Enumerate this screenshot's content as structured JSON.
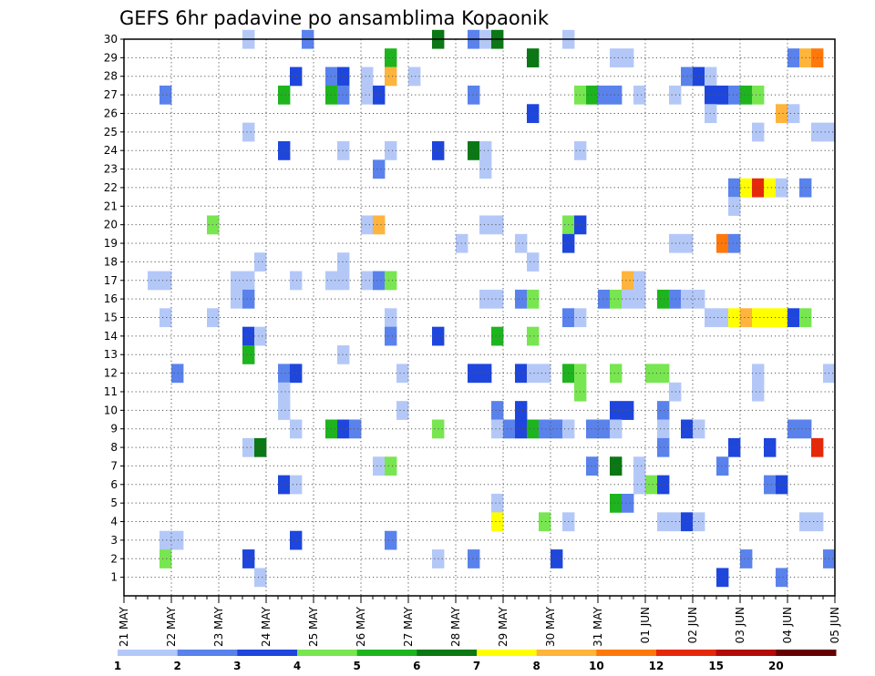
{
  "chart_data": {
    "type": "heatmap",
    "title": "GEFS 6hr padavine po ansamblima Kopaonik",
    "x_tick_labels": [
      "21 MAY",
      "22 MAY",
      "23 MAY",
      "24 MAY",
      "25 MAY",
      "26 MAY",
      "27 MAY",
      "28 MAY",
      "29 MAY",
      "30 MAY",
      "31 MAY",
      "01 JUN",
      "02 JUN",
      "03 JUN",
      "04 JUN",
      "05 JUN"
    ],
    "y_tick_labels": [
      "1",
      "2",
      "3",
      "4",
      "5",
      "6",
      "7",
      "8",
      "9",
      "10",
      "11",
      "12",
      "13",
      "14",
      "15",
      "16",
      "17",
      "18",
      "19",
      "20",
      "21",
      "22",
      "23",
      "24",
      "25",
      "26",
      "27",
      "28",
      "29",
      "30"
    ],
    "steps_per_day": 4,
    "xlim_steps": [
      0,
      60
    ],
    "ylim": [
      0,
      30
    ],
    "grid": true,
    "legend": {
      "placement": "bottom",
      "labels": [
        "1",
        "2",
        "3",
        "4",
        "5",
        "6",
        "7",
        "8",
        "10",
        "12",
        "15",
        "20"
      ],
      "colors": [
        "#b4c8f8",
        "#5a82ec",
        "#1e46dc",
        "#78e650",
        "#1eb41e",
        "#0a7814",
        "#ffff00",
        "#ffb43c",
        "#ff780a",
        "#e6280a",
        "#b40a0a",
        "#640000"
      ]
    },
    "cells": [
      [
        11,
        30,
        1
      ],
      [
        16,
        30,
        2
      ],
      [
        27,
        30,
        6
      ],
      [
        30,
        30,
        2
      ],
      [
        31,
        30,
        1
      ],
      [
        32,
        30,
        6
      ],
      [
        38,
        30,
        1
      ],
      [
        23,
        29,
        5
      ],
      [
        35,
        29,
        6
      ],
      [
        42,
        29,
        1
      ],
      [
        43,
        29,
        1
      ],
      [
        57,
        29,
        2
      ],
      [
        58,
        29,
        9
      ],
      [
        59,
        29,
        10
      ],
      [
        15,
        28,
        3
      ],
      [
        18,
        28,
        2
      ],
      [
        19,
        28,
        3
      ],
      [
        21,
        28,
        1
      ],
      [
        23,
        28,
        9
      ],
      [
        25,
        28,
        1
      ],
      [
        48,
        28,
        2
      ],
      [
        49,
        28,
        3
      ],
      [
        50,
        28,
        1
      ],
      [
        4,
        27,
        2
      ],
      [
        14,
        27,
        5
      ],
      [
        18,
        27,
        5
      ],
      [
        19,
        27,
        2
      ],
      [
        21,
        27,
        1
      ],
      [
        22,
        27,
        3
      ],
      [
        30,
        27,
        2
      ],
      [
        39,
        27,
        4
      ],
      [
        40,
        27,
        5
      ],
      [
        41,
        27,
        2
      ],
      [
        42,
        27,
        2
      ],
      [
        44,
        27,
        1
      ],
      [
        47,
        27,
        1
      ],
      [
        50,
        27,
        3
      ],
      [
        51,
        27,
        3
      ],
      [
        52,
        27,
        2
      ],
      [
        53,
        27,
        5
      ],
      [
        54,
        27,
        4
      ],
      [
        35,
        26,
        3
      ],
      [
        50,
        26,
        1
      ],
      [
        56,
        26,
        8
      ],
      [
        57,
        26,
        1
      ],
      [
        11,
        25,
        1
      ],
      [
        54,
        25,
        1
      ],
      [
        59,
        25,
        1
      ],
      [
        60,
        25,
        1
      ],
      [
        14,
        24,
        3
      ],
      [
        19,
        24,
        1
      ],
      [
        23,
        24,
        1
      ],
      [
        27,
        24,
        3
      ],
      [
        30,
        24,
        6
      ],
      [
        31,
        24,
        1
      ],
      [
        39,
        24,
        1
      ],
      [
        22,
        23,
        2
      ],
      [
        31,
        23,
        1
      ],
      [
        52,
        22,
        2
      ],
      [
        53,
        22,
        7
      ],
      [
        54,
        22,
        12
      ],
      [
        55,
        22,
        7
      ],
      [
        56,
        22,
        1
      ],
      [
        58,
        22,
        2
      ],
      [
        52,
        21,
        1
      ],
      [
        8,
        20,
        4
      ],
      [
        21,
        20,
        1
      ],
      [
        22,
        20,
        9
      ],
      [
        31,
        20,
        1
      ],
      [
        32,
        20,
        1
      ],
      [
        38,
        20,
        4
      ],
      [
        39,
        20,
        3
      ],
      [
        29,
        19,
        1
      ],
      [
        34,
        19,
        1
      ],
      [
        38,
        19,
        3
      ],
      [
        47,
        19,
        1
      ],
      [
        48,
        19,
        1
      ],
      [
        51,
        19,
        11
      ],
      [
        52,
        19,
        2
      ],
      [
        12,
        18,
        1
      ],
      [
        19,
        18,
        1
      ],
      [
        35,
        18,
        1
      ],
      [
        3,
        17,
        1
      ],
      [
        4,
        17,
        1
      ],
      [
        10,
        17,
        1
      ],
      [
        11,
        17,
        1
      ],
      [
        15,
        17,
        1
      ],
      [
        18,
        17,
        1
      ],
      [
        19,
        17,
        1
      ],
      [
        21,
        17,
        1
      ],
      [
        22,
        17,
        2
      ],
      [
        23,
        17,
        4
      ],
      [
        43,
        17,
        8
      ],
      [
        44,
        17,
        1
      ],
      [
        10,
        16,
        1
      ],
      [
        11,
        16,
        2
      ],
      [
        31,
        16,
        1
      ],
      [
        32,
        16,
        1
      ],
      [
        34,
        16,
        2
      ],
      [
        35,
        16,
        4
      ],
      [
        41,
        16,
        2
      ],
      [
        42,
        16,
        4
      ],
      [
        43,
        16,
        1
      ],
      [
        44,
        16,
        1
      ],
      [
        46,
        16,
        5
      ],
      [
        47,
        16,
        2
      ],
      [
        48,
        16,
        1
      ],
      [
        49,
        16,
        1
      ],
      [
        4,
        15,
        1
      ],
      [
        8,
        15,
        1
      ],
      [
        23,
        15,
        1
      ],
      [
        38,
        15,
        2
      ],
      [
        39,
        15,
        1
      ],
      [
        50,
        15,
        1
      ],
      [
        51,
        15,
        1
      ],
      [
        52,
        15,
        7
      ],
      [
        53,
        15,
        8
      ],
      [
        54,
        15,
        7
      ],
      [
        55,
        15,
        7
      ],
      [
        56,
        15,
        7
      ],
      [
        57,
        15,
        3
      ],
      [
        58,
        15,
        4
      ],
      [
        11,
        14,
        3
      ],
      [
        12,
        14,
        1
      ],
      [
        23,
        14,
        2
      ],
      [
        27,
        14,
        3
      ],
      [
        32,
        14,
        5
      ],
      [
        35,
        14,
        4
      ],
      [
        11,
        13,
        5
      ],
      [
        19,
        13,
        1
      ],
      [
        5,
        12,
        2
      ],
      [
        14,
        12,
        2
      ],
      [
        15,
        12,
        3
      ],
      [
        24,
        12,
        1
      ],
      [
        30,
        12,
        3
      ],
      [
        31,
        12,
        3
      ],
      [
        34,
        12,
        3
      ],
      [
        35,
        12,
        1
      ],
      [
        36,
        12,
        1
      ],
      [
        38,
        12,
        5
      ],
      [
        39,
        12,
        4
      ],
      [
        42,
        12,
        4
      ],
      [
        45,
        12,
        4
      ],
      [
        46,
        12,
        4
      ],
      [
        54,
        12,
        1
      ],
      [
        60,
        12,
        1
      ],
      [
        14,
        11,
        1
      ],
      [
        39,
        11,
        4
      ],
      [
        47,
        11,
        1
      ],
      [
        54,
        11,
        1
      ],
      [
        14,
        10,
        1
      ],
      [
        24,
        10,
        1
      ],
      [
        32,
        10,
        2
      ],
      [
        34,
        10,
        3
      ],
      [
        42,
        10,
        3
      ],
      [
        43,
        10,
        3
      ],
      [
        46,
        10,
        2
      ],
      [
        15,
        9,
        1
      ],
      [
        18,
        9,
        5
      ],
      [
        19,
        9,
        3
      ],
      [
        20,
        9,
        2
      ],
      [
        27,
        9,
        4
      ],
      [
        32,
        9,
        1
      ],
      [
        33,
        9,
        2
      ],
      [
        34,
        9,
        3
      ],
      [
        35,
        9,
        5
      ],
      [
        36,
        9,
        2
      ],
      [
        37,
        9,
        2
      ],
      [
        38,
        9,
        1
      ],
      [
        40,
        9,
        2
      ],
      [
        41,
        9,
        2
      ],
      [
        42,
        9,
        1
      ],
      [
        46,
        9,
        1
      ],
      [
        48,
        9,
        3
      ],
      [
        49,
        9,
        1
      ],
      [
        57,
        9,
        2
      ],
      [
        58,
        9,
        2
      ],
      [
        11,
        8,
        1
      ],
      [
        12,
        8,
        6
      ],
      [
        46,
        8,
        2
      ],
      [
        52,
        8,
        3
      ],
      [
        55,
        8,
        3
      ],
      [
        59,
        8,
        12
      ],
      [
        22,
        7,
        1
      ],
      [
        23,
        7,
        4
      ],
      [
        40,
        7,
        2
      ],
      [
        42,
        7,
        6
      ],
      [
        44,
        7,
        1
      ],
      [
        51,
        7,
        2
      ],
      [
        14,
        6,
        3
      ],
      [
        15,
        6,
        1
      ],
      [
        44,
        6,
        1
      ],
      [
        45,
        6,
        4
      ],
      [
        46,
        6,
        3
      ],
      [
        55,
        6,
        2
      ],
      [
        56,
        6,
        3
      ],
      [
        32,
        5,
        1
      ],
      [
        42,
        5,
        5
      ],
      [
        43,
        5,
        2
      ],
      [
        32,
        4,
        7
      ],
      [
        36,
        4,
        4
      ],
      [
        38,
        4,
        1
      ],
      [
        46,
        4,
        1
      ],
      [
        47,
        4,
        1
      ],
      [
        48,
        4,
        3
      ],
      [
        49,
        4,
        1
      ],
      [
        58,
        4,
        1
      ],
      [
        59,
        4,
        1
      ],
      [
        4,
        3,
        1
      ],
      [
        5,
        3,
        1
      ],
      [
        15,
        3,
        3
      ],
      [
        23,
        3,
        2
      ],
      [
        4,
        2,
        4
      ],
      [
        11,
        2,
        3
      ],
      [
        27,
        2,
        1
      ],
      [
        30,
        2,
        2
      ],
      [
        37,
        2,
        3
      ],
      [
        53,
        2,
        2
      ],
      [
        60,
        2,
        2
      ],
      [
        12,
        1,
        1
      ],
      [
        51,
        1,
        3
      ],
      [
        56,
        1,
        2
      ]
    ]
  }
}
